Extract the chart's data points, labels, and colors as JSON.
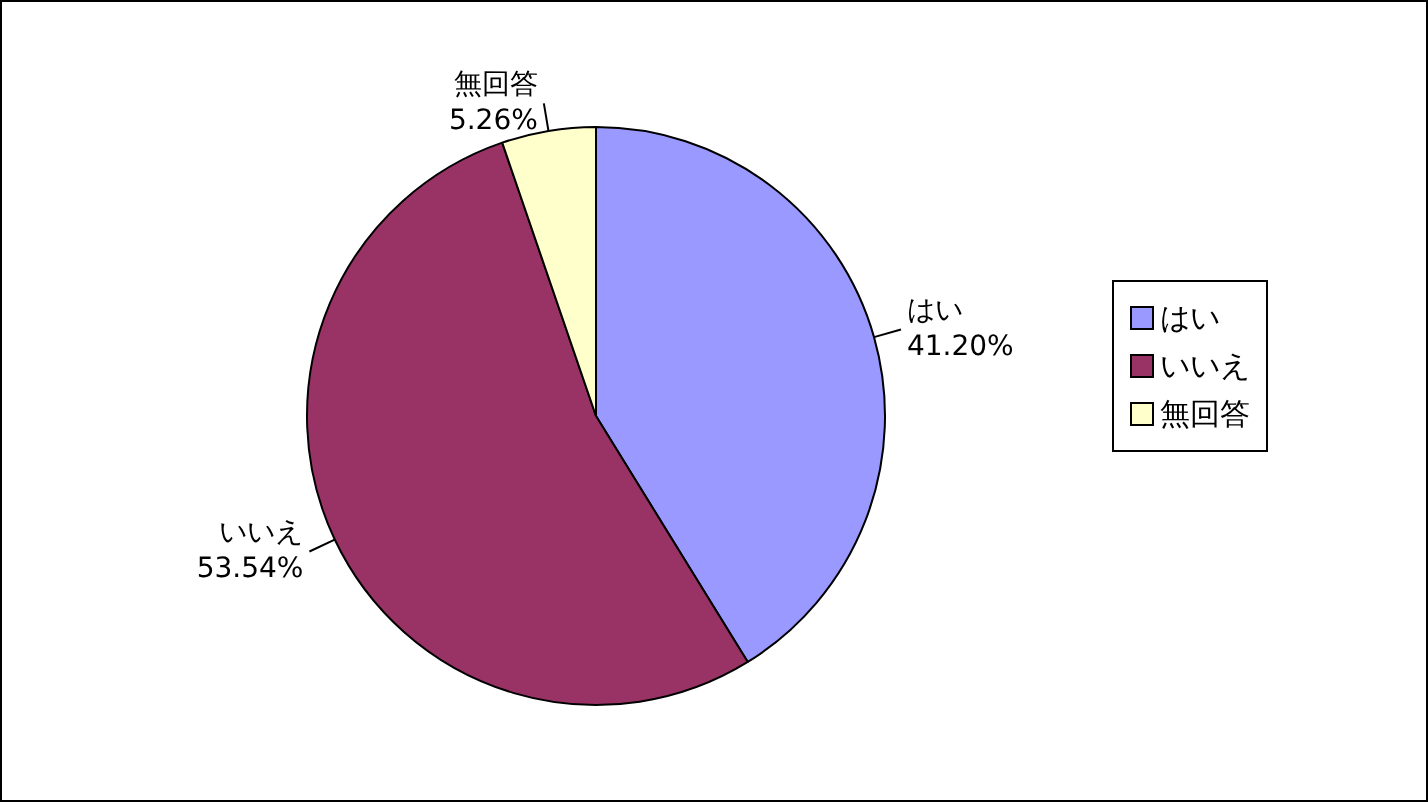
{
  "chart_data": {
    "type": "pie",
    "categories": [
      "はい",
      "いいえ",
      "無回答"
    ],
    "values": [
      41.2,
      53.54,
      5.26
    ],
    "value_labels": [
      "41.20%",
      "53.54%",
      "5.26%"
    ],
    "colors": [
      "#9999ff",
      "#993366",
      "#ffffcc"
    ],
    "legend": "right"
  }
}
